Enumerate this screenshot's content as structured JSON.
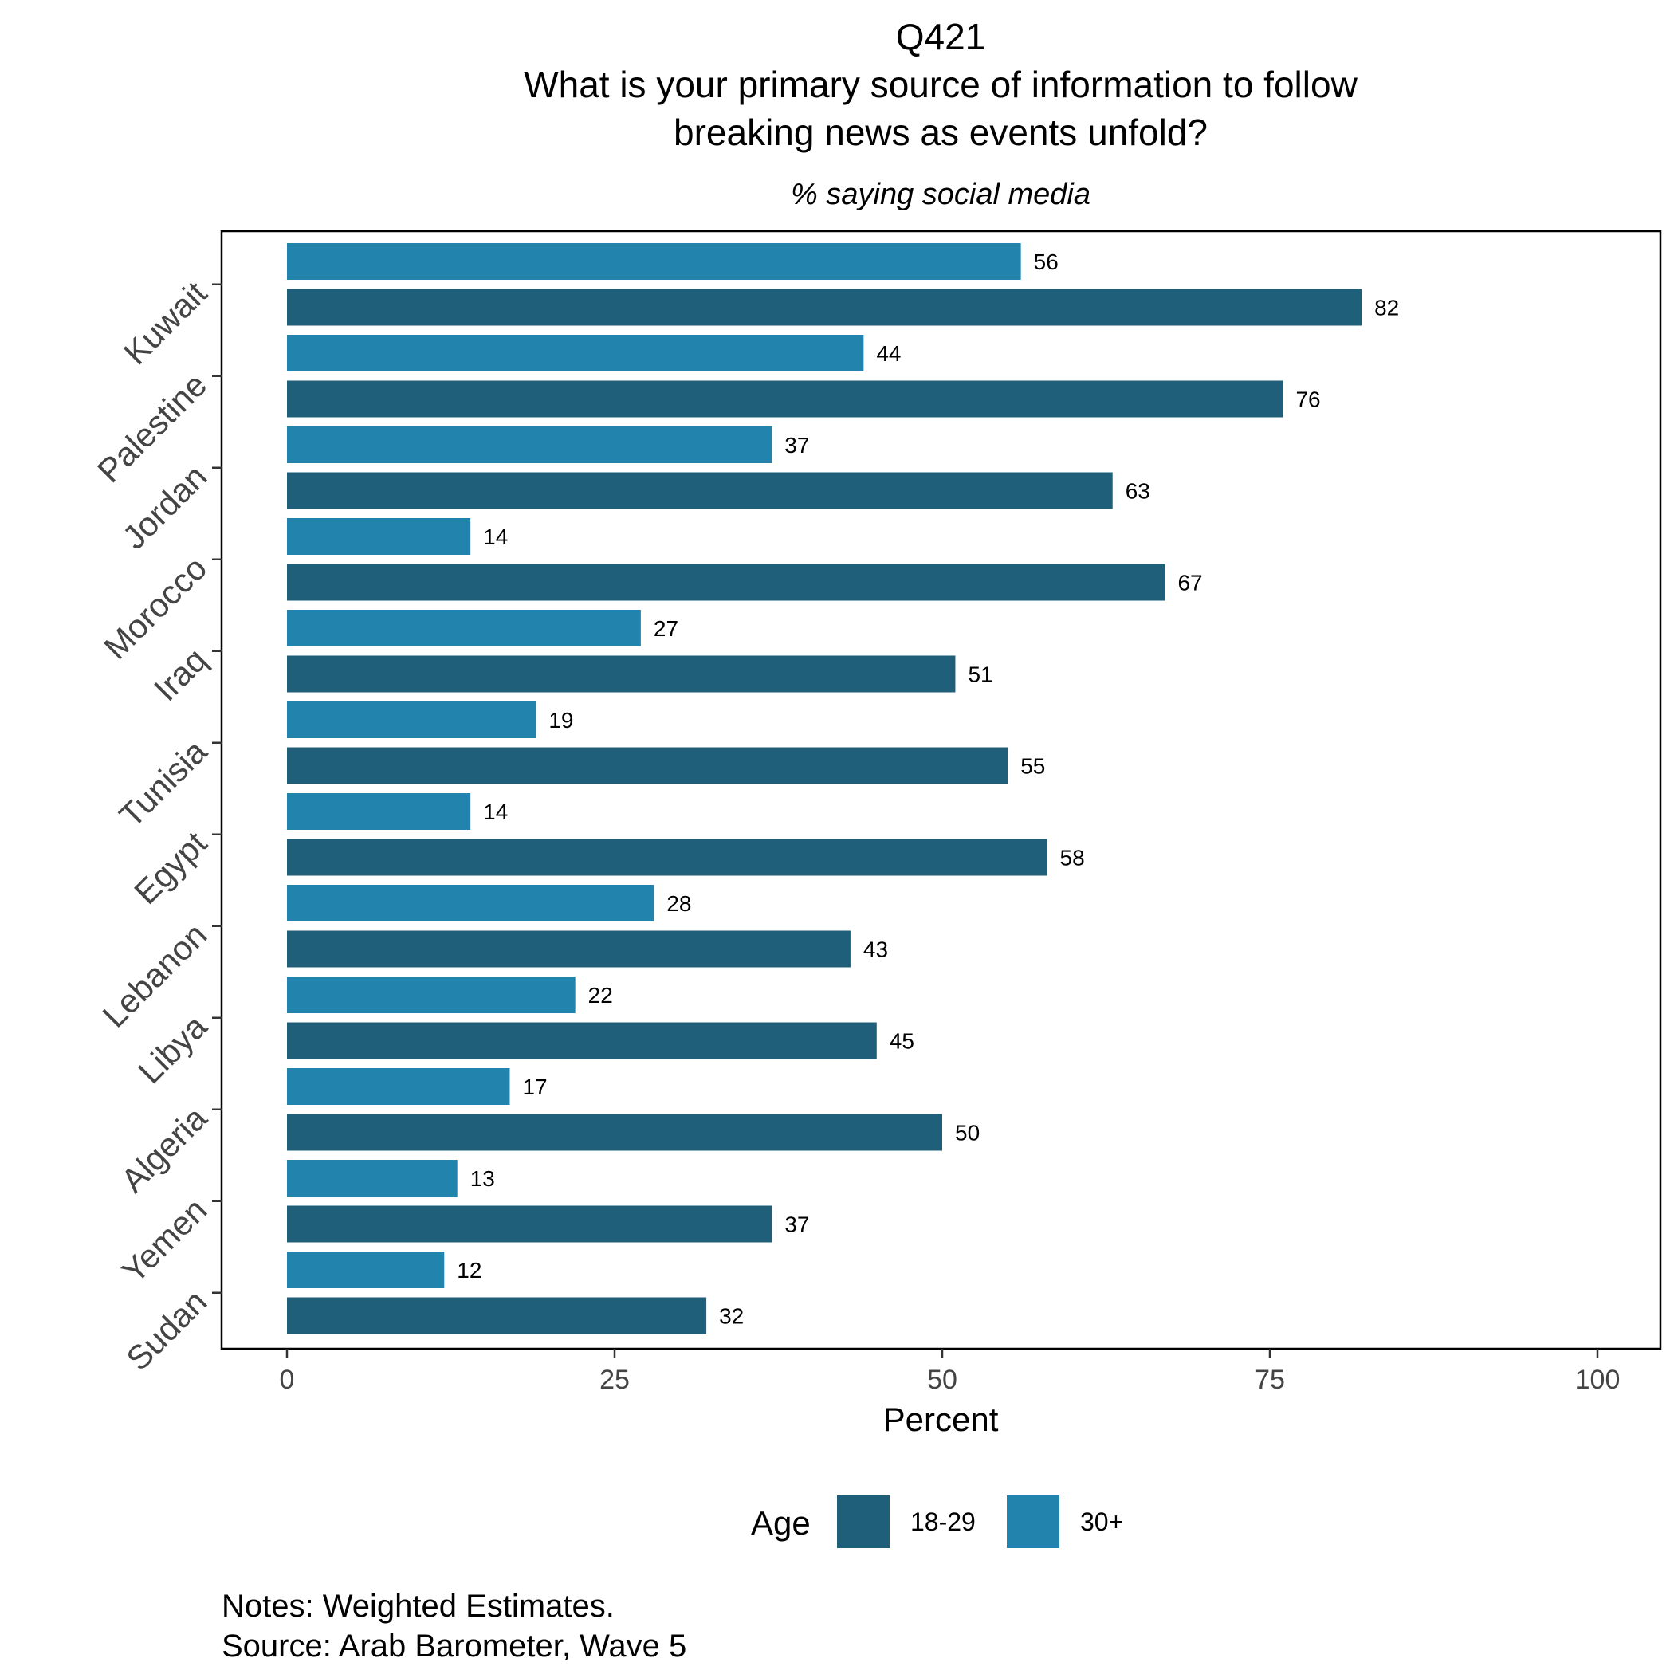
{
  "chart_data": {
    "type": "bar",
    "orientation": "horizontal",
    "title_lines": [
      "Q421",
      "What is your primary source of information to follow",
      "breaking news as events unfold?"
    ],
    "subtitle": "% saying social media",
    "xlabel": "Percent",
    "xlim": [
      0,
      100
    ],
    "x_ticks": [
      "0",
      "25",
      "50",
      "75",
      "100"
    ],
    "categories": [
      "Kuwait",
      "Palestine",
      "Jordan",
      "Morocco",
      "Iraq",
      "Tunisia",
      "Egypt",
      "Lebanon",
      "Libya",
      "Algeria",
      "Yemen",
      "Sudan"
    ],
    "series": [
      {
        "name": "30+",
        "color": "#2284ad",
        "values": [
          56,
          44,
          37,
          14,
          27,
          19,
          14,
          28,
          22,
          17,
          13,
          12
        ]
      },
      {
        "name": "18-29",
        "color": "#1f5f7a",
        "values": [
          82,
          76,
          63,
          67,
          51,
          55,
          58,
          43,
          45,
          50,
          37,
          32
        ]
      }
    ],
    "legend": {
      "title": "Age",
      "position": "bottom",
      "items": [
        {
          "label": "18-29",
          "color": "#1f5f7a"
        },
        {
          "label": "30+",
          "color": "#2284ad"
        }
      ]
    },
    "grid": false,
    "notes": [
      "Notes: Weighted Estimates.",
      "Source: Arab Barometer, Wave 5"
    ]
  }
}
